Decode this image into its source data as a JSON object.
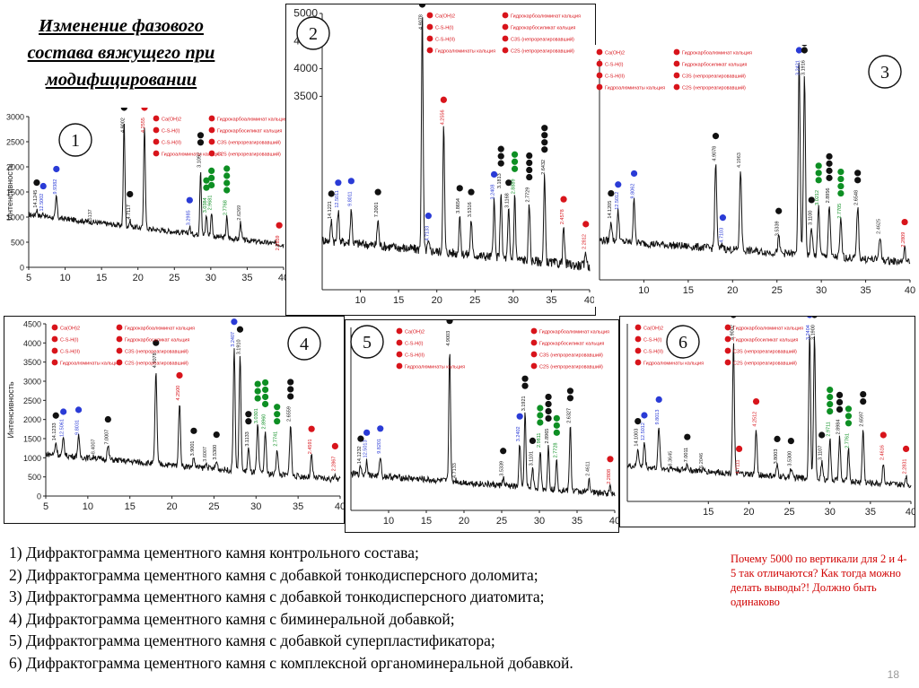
{
  "title": "Изменение фазового состава вяжущего при модифицировании",
  "colors": {
    "black": "#111111",
    "blue": "#2a3bd6",
    "green": "#0d8f23",
    "red": "#d8141b",
    "curve": "#111111",
    "note": "#d00000"
  },
  "legend": {
    "left": [
      {
        "label": "Ca(OH)2",
        "color": "red"
      },
      {
        "label": "C-S-H(I)",
        "color": "red"
      },
      {
        "label": "C-S-H(II)",
        "color": "red"
      },
      {
        "label": "Гидроалюминаты кальция",
        "color": "red"
      }
    ],
    "right": [
      {
        "label": "Гидрокарбоалюминат кальция",
        "color": "red"
      },
      {
        "label": "Гидрокарбосиликат кальция",
        "color": "red"
      },
      {
        "label": "C3S (непрореагировавший)",
        "color": "red"
      },
      {
        "label": "C2S (непрореагировавший)",
        "color": "red"
      }
    ]
  },
  "chart_data": [
    {
      "id": "1",
      "type": "line",
      "xlabel": "",
      "ylabel": "Интенсивность",
      "xlim": [
        5,
        40
      ],
      "ylim": [
        0,
        3000
      ],
      "xticks": [
        5,
        10,
        15,
        20,
        25,
        30,
        35,
        40
      ],
      "yticks": [
        0,
        500,
        1000,
        1500,
        2000,
        2500,
        3000
      ],
      "baseline": 1050,
      "baseline_end": 450,
      "peaks": [
        {
          "x": 6.1,
          "y": 1150,
          "label": "14.1245",
          "colors": [
            "black"
          ]
        },
        {
          "x": 7.0,
          "y": 1080,
          "label": "12.5002",
          "colors": [
            "blue"
          ]
        },
        {
          "x": 8.8,
          "y": 1420,
          "label": "9.9382",
          "colors": [
            "blue"
          ]
        },
        {
          "x": 13.6,
          "y": 820,
          "label": "6.5137",
          "colors": []
        },
        {
          "x": 18.1,
          "y": 2950,
          "label": "4.9002",
          "colors": [
            "black"
          ]
        },
        {
          "x": 18.9,
          "y": 920,
          "label": "4.7117",
          "colors": [
            "black"
          ]
        },
        {
          "x": 20.9,
          "y": 2850,
          "label": "4.2555",
          "colors": [
            "red"
          ]
        },
        {
          "x": 27.1,
          "y": 800,
          "label": "3.2985",
          "colors": [
            "blue"
          ]
        },
        {
          "x": 28.6,
          "y": 1950,
          "label": "3.1092",
          "colors": [
            "black",
            "black"
          ]
        },
        {
          "x": 29.4,
          "y": 1050,
          "label": "3.0384",
          "colors": [
            "green",
            "green"
          ]
        },
        {
          "x": 30.1,
          "y": 1100,
          "label": "2.9681",
          "colors": [
            "green",
            "green",
            "green"
          ]
        },
        {
          "x": 32.2,
          "y": 1000,
          "label": "2.7768",
          "colors": [
            "green",
            "green",
            "green",
            "green"
          ]
        },
        {
          "x": 34.1,
          "y": 900,
          "label": "2.6269",
          "colors": []
        },
        {
          "x": 39.4,
          "y": 300,
          "label": "2.2859",
          "colors": [
            "red"
          ]
        }
      ]
    },
    {
      "id": "2",
      "type": "line",
      "xlabel": "",
      "ylabel": "",
      "xlim": [
        5,
        40
      ],
      "ylim": [
        0,
        5000
      ],
      "xticks": [
        10,
        15,
        20,
        25,
        30,
        35,
        40
      ],
      "yticks": [
        3500,
        4000,
        4500,
        5000
      ],
      "baseline": 900,
      "baseline_end": 420,
      "peaks": [
        {
          "x": 6.2,
          "y": 1250,
          "label": "14.1221",
          "colors": [
            "black"
          ]
        },
        {
          "x": 7.1,
          "y": 1450,
          "label": "12.5011",
          "colors": [
            "blue"
          ]
        },
        {
          "x": 8.8,
          "y": 1480,
          "label": "9.8011",
          "colors": [
            "blue"
          ]
        },
        {
          "x": 12.3,
          "y": 1280,
          "label": "7.2001",
          "colors": [
            "black"
          ]
        },
        {
          "x": 18.1,
          "y": 4980,
          "label": "4.9078",
          "colors": [
            "black"
          ]
        },
        {
          "x": 18.9,
          "y": 850,
          "label": "4.7133",
          "colors": [
            "blue"
          ]
        },
        {
          "x": 20.9,
          "y": 2950,
          "label": "4.2556",
          "colors": [
            "red"
          ]
        },
        {
          "x": 23.0,
          "y": 1350,
          "label": "3.8654",
          "colors": [
            "black"
          ]
        },
        {
          "x": 24.5,
          "y": 1280,
          "label": "3.5316",
          "colors": [
            "black"
          ]
        },
        {
          "x": 27.5,
          "y": 1600,
          "label": "3.2408",
          "colors": [
            "blue"
          ]
        },
        {
          "x": 28.4,
          "y": 1800,
          "label": "3.1813",
          "colors": [
            "black",
            "black",
            "black"
          ]
        },
        {
          "x": 29.4,
          "y": 1450,
          "label": "3.1168",
          "colors": [
            "black"
          ]
        },
        {
          "x": 30.2,
          "y": 1700,
          "label": "2.8889",
          "colors": [
            "green",
            "green",
            "green"
          ]
        },
        {
          "x": 32.1,
          "y": 1550,
          "label": "2.7729",
          "colors": [
            "black",
            "black",
            "black",
            "black"
          ]
        },
        {
          "x": 34.1,
          "y": 2050,
          "label": "2.6432",
          "colors": [
            "black",
            "black",
            "black",
            "black"
          ]
        },
        {
          "x": 36.6,
          "y": 1150,
          "label": "2.4578",
          "colors": [
            "red"
          ]
        },
        {
          "x": 39.5,
          "y": 700,
          "label": "2.2812",
          "colors": [
            "red"
          ]
        }
      ]
    },
    {
      "id": "3",
      "type": "line",
      "xlabel": "",
      "ylabel": "",
      "xlim": [
        5,
        40
      ],
      "ylim": [
        0,
        5000
      ],
      "xticks": [
        10,
        15,
        20,
        25,
        30,
        35,
        40
      ],
      "yticks": [],
      "baseline": 900,
      "baseline_end": 400,
      "peaks": [
        {
          "x": 6.3,
          "y": 1350,
          "label": "14.1205",
          "colors": [
            "black"
          ]
        },
        {
          "x": 7.1,
          "y": 1550,
          "label": "12.5012",
          "colors": [
            "blue"
          ]
        },
        {
          "x": 8.9,
          "y": 1800,
          "label": "9.8062",
          "colors": [
            "blue"
          ]
        },
        {
          "x": 18.1,
          "y": 2650,
          "label": "4.9078",
          "colors": [
            "black"
          ]
        },
        {
          "x": 18.9,
          "y": 800,
          "label": "4.7103",
          "colors": [
            "blue"
          ]
        },
        {
          "x": 20.9,
          "y": 2500,
          "label": "4.1963",
          "colors": []
        },
        {
          "x": 25.2,
          "y": 950,
          "label": "3.5339",
          "colors": [
            "black"
          ]
        },
        {
          "x": 27.5,
          "y": 4900,
          "label": "3.2421",
          "colors": [
            "blue"
          ]
        },
        {
          "x": 28.1,
          "y": 4600,
          "label": "3.1916",
          "colors": [
            "black",
            "black"
          ]
        },
        {
          "x": 28.9,
          "y": 1200,
          "label": "3.1100",
          "colors": [
            "black"
          ]
        },
        {
          "x": 29.7,
          "y": 1650,
          "label": "3.0212",
          "colors": [
            "green",
            "green",
            "green"
          ]
        },
        {
          "x": 30.9,
          "y": 1700,
          "label": "2.8956",
          "colors": [
            "black",
            "black",
            "black",
            "black"
          ]
        },
        {
          "x": 32.2,
          "y": 1350,
          "label": "2.7705",
          "colors": [
            "green",
            "green",
            "green",
            "green"
          ]
        },
        {
          "x": 34.1,
          "y": 1650,
          "label": "2.6548",
          "colors": [
            "black",
            "black"
          ]
        },
        {
          "x": 36.6,
          "y": 1000,
          "label": "2.4625",
          "colors": []
        },
        {
          "x": 39.4,
          "y": 700,
          "label": "2.2809",
          "colors": [
            "red"
          ]
        }
      ]
    },
    {
      "id": "4",
      "type": "line",
      "xlabel": "",
      "ylabel": "Интенсивность",
      "xlim": [
        5,
        40
      ],
      "ylim": [
        0,
        4500
      ],
      "xticks": [
        5,
        10,
        15,
        20,
        25,
        30,
        35,
        40
      ],
      "yticks": [
        0,
        500,
        1000,
        1500,
        2000,
        2500,
        3000,
        3500,
        4000,
        4500
      ],
      "baseline": 1100,
      "baseline_end": 420,
      "peaks": [
        {
          "x": 6.2,
          "y": 1400,
          "label": "14.1233",
          "colors": [
            "black"
          ]
        },
        {
          "x": 7.1,
          "y": 1500,
          "label": "12.5061",
          "colors": [
            "blue"
          ]
        },
        {
          "x": 8.9,
          "y": 1550,
          "label": "9.8031",
          "colors": [
            "blue"
          ]
        },
        {
          "x": 10.8,
          "y": 1050,
          "label": "8.4007",
          "colors": []
        },
        {
          "x": 12.4,
          "y": 1300,
          "label": "7.0007",
          "colors": [
            "black"
          ]
        },
        {
          "x": 18.1,
          "y": 3300,
          "label": "4.9078",
          "colors": [
            "black"
          ]
        },
        {
          "x": 20.9,
          "y": 2450,
          "label": "4.2500",
          "colors": [
            "red"
          ]
        },
        {
          "x": 22.6,
          "y": 1000,
          "label": "3.9001",
          "colors": [
            "black"
          ]
        },
        {
          "x": 24.1,
          "y": 850,
          "label": "3.6007",
          "colors": []
        },
        {
          "x": 25.3,
          "y": 900,
          "label": "3.5300",
          "colors": [
            "black"
          ]
        },
        {
          "x": 27.4,
          "y": 3850,
          "label": "3.2407",
          "colors": [
            "blue"
          ]
        },
        {
          "x": 28.1,
          "y": 3650,
          "label": "3.1910",
          "colors": [
            "black"
          ]
        },
        {
          "x": 29.1,
          "y": 1250,
          "label": "3.1133",
          "colors": [
            "black",
            "black"
          ]
        },
        {
          "x": 30.2,
          "y": 1850,
          "label": "3.0301",
          "colors": [
            "green",
            "green",
            "green"
          ]
        },
        {
          "x": 31.1,
          "y": 1700,
          "label": "2.8960",
          "colors": [
            "green",
            "green",
            "green",
            "green"
          ]
        },
        {
          "x": 32.5,
          "y": 1250,
          "label": "2.7741",
          "colors": [
            "green",
            "green",
            "green"
          ]
        },
        {
          "x": 34.1,
          "y": 1900,
          "label": "2.6559",
          "colors": [
            "black",
            "black",
            "black"
          ]
        },
        {
          "x": 36.6,
          "y": 1050,
          "label": "2.4591",
          "colors": [
            "red"
          ]
        },
        {
          "x": 39.4,
          "y": 600,
          "label": "2.2867",
          "colors": [
            "red"
          ]
        }
      ]
    },
    {
      "id": "5",
      "type": "line",
      "xlabel": "",
      "ylabel": "",
      "xlim": [
        5,
        40
      ],
      "ylim": [
        0,
        4500
      ],
      "xticks": [
        10,
        15,
        20,
        25,
        30,
        35,
        40
      ],
      "yticks": [],
      "baseline": 900,
      "baseline_end": 400,
      "peaks": [
        {
          "x": 6.3,
          "y": 1100,
          "label": "14.1232",
          "colors": [
            "black"
          ]
        },
        {
          "x": 7.1,
          "y": 1250,
          "label": "12.5013",
          "colors": [
            "blue"
          ]
        },
        {
          "x": 8.9,
          "y": 1350,
          "label": "9.8201",
          "colors": [
            "blue"
          ]
        },
        {
          "x": 18.1,
          "y": 4000,
          "label": "4.9003",
          "colors": [
            "black"
          ]
        },
        {
          "x": 18.9,
          "y": 750,
          "label": "4.7133",
          "colors": []
        },
        {
          "x": 25.2,
          "y": 800,
          "label": "3.5339",
          "colors": [
            "black"
          ]
        },
        {
          "x": 27.4,
          "y": 1650,
          "label": "3.2402",
          "colors": [
            "blue"
          ]
        },
        {
          "x": 28.1,
          "y": 2400,
          "label": "3.1921",
          "colors": [
            "black",
            "black"
          ]
        },
        {
          "x": 29.1,
          "y": 1050,
          "label": "3.1101",
          "colors": [
            "black"
          ]
        },
        {
          "x": 30.1,
          "y": 1500,
          "label": "2.9811",
          "colors": [
            "green",
            "green",
            "green"
          ]
        },
        {
          "x": 31.2,
          "y": 1600,
          "label": "2.8965",
          "colors": [
            "black",
            "black",
            "black",
            "black"
          ]
        },
        {
          "x": 32.3,
          "y": 1250,
          "label": "2.7728",
          "colors": [
            "green",
            "green",
            "green"
          ]
        },
        {
          "x": 34.1,
          "y": 2100,
          "label": "2.6327",
          "colors": [
            "black",
            "black"
          ]
        },
        {
          "x": 36.6,
          "y": 800,
          "label": "2.4611",
          "colors": []
        },
        {
          "x": 39.4,
          "y": 600,
          "label": "2.2808",
          "colors": [
            "red"
          ]
        }
      ]
    },
    {
      "id": "6",
      "type": "line",
      "xlabel": "",
      "ylabel": "",
      "xlim": [
        5,
        40
      ],
      "ylim": [
        0,
        4500
      ],
      "xticks": [
        15,
        20,
        25,
        30,
        35,
        40
      ],
      "yticks": [],
      "baseline": 900,
      "baseline_end": 400,
      "peaks": [
        {
          "x": 6.3,
          "y": 1350,
          "label": "14.1003",
          "colors": [
            "black"
          ]
        },
        {
          "x": 7.1,
          "y": 1500,
          "label": "12.5012",
          "colors": [
            "blue"
          ]
        },
        {
          "x": 8.9,
          "y": 1900,
          "label": "9.8013",
          "colors": [
            "blue"
          ]
        },
        {
          "x": 10.5,
          "y": 850,
          "label": "8.3645",
          "colors": []
        },
        {
          "x": 12.4,
          "y": 950,
          "label": "7.0011",
          "colors": [
            "black"
          ]
        },
        {
          "x": 14.3,
          "y": 800,
          "label": "6.2046",
          "colors": []
        },
        {
          "x": 18.1,
          "y": 4050,
          "label": "4.9002",
          "colors": [
            "black"
          ]
        },
        {
          "x": 18.8,
          "y": 650,
          "label": "4.7111",
          "colors": [
            "red"
          ]
        },
        {
          "x": 20.9,
          "y": 1850,
          "label": "4.2512",
          "colors": [
            "red"
          ]
        },
        {
          "x": 23.5,
          "y": 900,
          "label": "3.8003",
          "colors": [
            "black"
          ]
        },
        {
          "x": 25.2,
          "y": 850,
          "label": "3.5300",
          "colors": [
            "black"
          ]
        },
        {
          "x": 27.5,
          "y": 4350,
          "label": "3.2404",
          "colors": [
            "blue"
          ]
        },
        {
          "x": 28.1,
          "y": 4200,
          "label": "3.1900",
          "colors": [
            "black",
            "black"
          ]
        },
        {
          "x": 29.0,
          "y": 1000,
          "label": "3.1107",
          "colors": [
            "black"
          ]
        },
        {
          "x": 30.0,
          "y": 1600,
          "label": "2.9711",
          "colors": [
            "green",
            "green",
            "green",
            "green"
          ]
        },
        {
          "x": 31.2,
          "y": 1650,
          "label": "2.8984",
          "colors": [
            "black",
            "black",
            "black"
          ]
        },
        {
          "x": 32.3,
          "y": 1300,
          "label": "2.7761",
          "colors": [
            "green",
            "green",
            "green"
          ]
        },
        {
          "x": 34.1,
          "y": 1850,
          "label": "2.6597",
          "colors": [
            "black",
            "black"
          ]
        },
        {
          "x": 36.6,
          "y": 1000,
          "label": "2.4616",
          "colors": [
            "red"
          ]
        },
        {
          "x": 39.4,
          "y": 650,
          "label": "2.2831",
          "colors": [
            "red"
          ]
        }
      ]
    }
  ],
  "captions": [
    "1)  Дифрактограмма цементного камня контрольного состава;",
    "2)  Дифрактограмма цементного камня с добавкой тонкодисперсного доломита;",
    "3) Дифрактограмма цементного камня с добавкой тонкодисперсного диатомита;",
    "4) Дифрактограмма цементного камня с биминеральной добавкой;",
    "5) Дифрактограмма цементного камня с добавкой суперпластификатора;",
    "6) Дифрактограмма цементного камня с комплексной органоминеральной добавкой."
  ],
  "note": "Почему 5000  по вертикали для 2 и 4-5 так отличаются? Как тогда можно делать выводы?! Должно быть одинаково",
  "page_number": "18"
}
